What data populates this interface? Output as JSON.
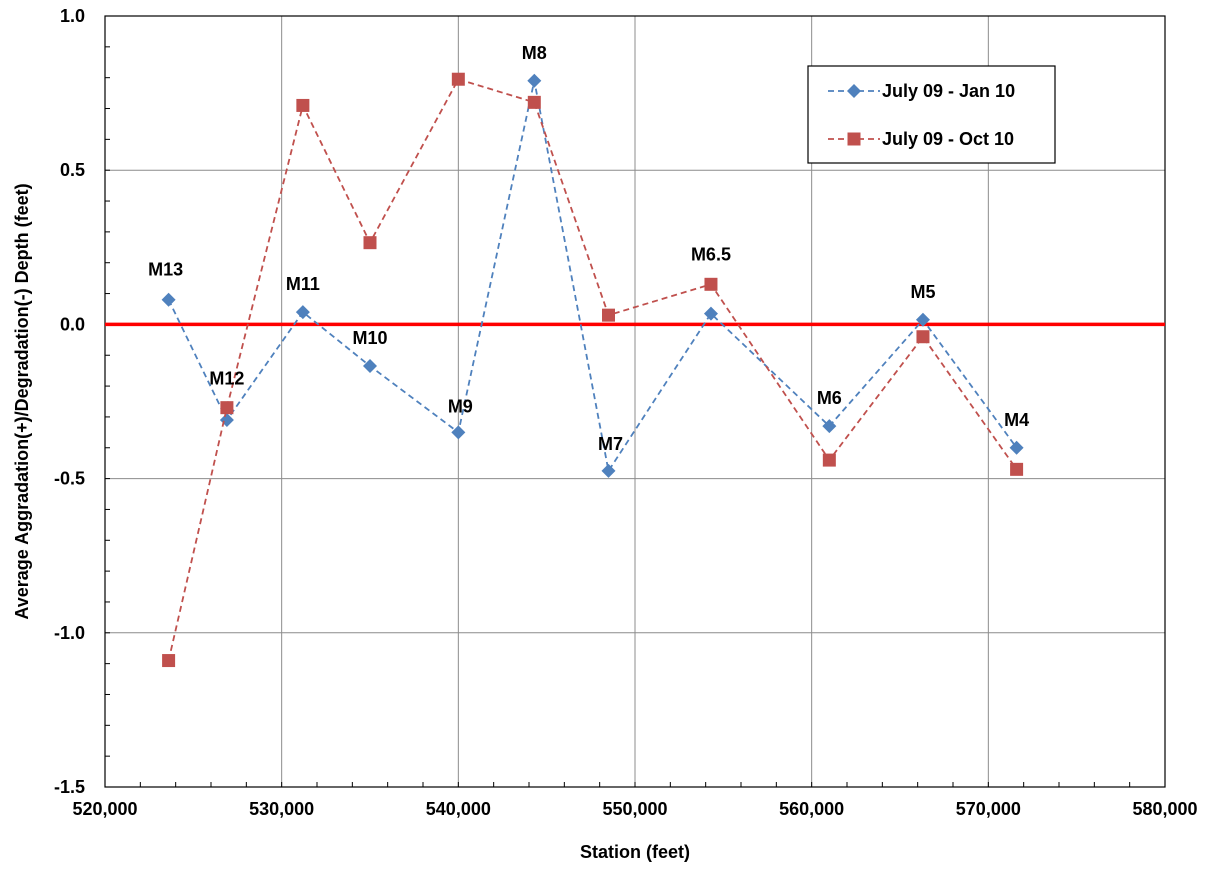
{
  "chart_data": {
    "type": "line",
    "xlabel": "Station (feet)",
    "ylabel": "Average Aggradation(+)/Degradation(-) Depth (feet)",
    "xlim": [
      520000,
      580000
    ],
    "ylim": [
      -1.5,
      1.0
    ],
    "x_ticks": [
      "520,000",
      "530,000",
      "540,000",
      "550,000",
      "560,000",
      "570,000",
      "580,000"
    ],
    "y_ticks": [
      "1.0",
      "0.5",
      "0.0",
      "-0.5",
      "-1.0",
      "-1.5"
    ],
    "grid": true,
    "legend_position": "top-right",
    "zero_line": {
      "value": 0.0,
      "color": "#ff0000"
    },
    "series": [
      {
        "name": "July 09 - Jan 10",
        "color": "#4f81bd",
        "marker": "diamond",
        "line_style": "dashed",
        "x": [
          523600,
          526900,
          531200,
          535000,
          540000,
          544300,
          548500,
          554300,
          561000,
          566300,
          571600
        ],
        "y": [
          0.08,
          -0.31,
          0.04,
          -0.135,
          -0.35,
          0.79,
          -0.475,
          0.035,
          -0.33,
          0.015,
          -0.4
        ]
      },
      {
        "name": "July 09 - Oct 10",
        "color": "#c0504d",
        "marker": "square",
        "line_style": "dashed",
        "x": [
          523600,
          526900,
          531200,
          535000,
          540000,
          544300,
          548500,
          554300,
          561000,
          566300,
          571600
        ],
        "y": [
          -1.09,
          -0.27,
          0.71,
          0.265,
          0.795,
          0.72,
          0.03,
          0.13,
          -0.44,
          -0.04,
          -0.47
        ]
      }
    ],
    "annotations": [
      {
        "text": "M13",
        "x": 523600,
        "y": 0.08
      },
      {
        "text": "M12",
        "x": 526900,
        "y": -0.27
      },
      {
        "text": "M11",
        "x": 531200,
        "y": 0.04
      },
      {
        "text": "M10",
        "x": 535000,
        "y": -0.135
      },
      {
        "text": "M9",
        "x": 540000,
        "y": -0.35
      },
      {
        "text": "M8",
        "x": 544300,
        "y": 0.79
      },
      {
        "text": "M7",
        "x": 548500,
        "y": -0.475
      },
      {
        "text": "M6.5",
        "x": 554300,
        "y": 0.13
      },
      {
        "text": "M6",
        "x": 561000,
        "y": -0.33
      },
      {
        "text": "M5",
        "x": 566300,
        "y": 0.015
      },
      {
        "text": "M4",
        "x": 571600,
        "y": -0.4
      }
    ]
  }
}
